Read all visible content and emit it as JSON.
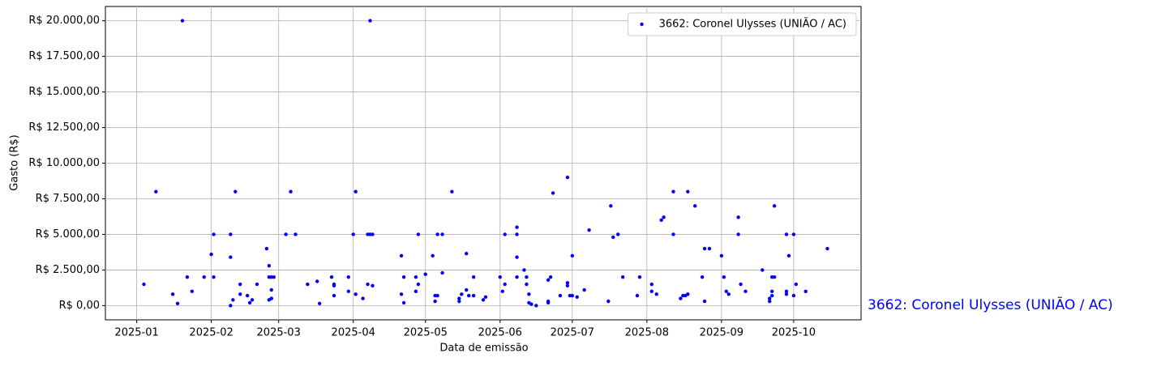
{
  "chart_data": {
    "type": "scatter",
    "xlabel": "Data de emissão",
    "ylabel": "Gasto (R$)",
    "annotation": "3662: Coronel Ulysses (UNIÃO / AC)",
    "grid": true,
    "legend": "upper right",
    "xlim": [
      "2024-12-19",
      "2025-10-29"
    ],
    "xticks": [
      {
        "value": "2025-01-01",
        "label": "2025-01"
      },
      {
        "value": "2025-02-01",
        "label": "2025-02"
      },
      {
        "value": "2025-03-01",
        "label": "2025-03"
      },
      {
        "value": "2025-04-01",
        "label": "2025-04"
      },
      {
        "value": "2025-05-01",
        "label": "2025-05"
      },
      {
        "value": "2025-06-01",
        "label": "2025-06"
      },
      {
        "value": "2025-07-01",
        "label": "2025-07"
      },
      {
        "value": "2025-08-01",
        "label": "2025-08"
      },
      {
        "value": "2025-09-01",
        "label": "2025-09"
      },
      {
        "value": "2025-10-01",
        "label": "2025-10"
      }
    ],
    "ylim": [
      -1000,
      21000
    ],
    "yticks": [
      {
        "value": 0,
        "label": "R$ 0,00"
      },
      {
        "value": 2500,
        "label": "R$ 2.500,00"
      },
      {
        "value": 5000,
        "label": "R$ 5.000,00"
      },
      {
        "value": 7500,
        "label": "R$ 7.500,00"
      },
      {
        "value": 10000,
        "label": "R$ 10.000,00"
      },
      {
        "value": 12500,
        "label": "R$ 12.500,00"
      },
      {
        "value": 15000,
        "label": "R$ 15.000,00"
      },
      {
        "value": 17500,
        "label": "R$ 17.500,00"
      },
      {
        "value": 20000,
        "label": "R$ 20.000,00"
      }
    ],
    "series": [
      {
        "name": "3662: Coronel Ulysses (UNIÃO / AC)",
        "color": "#0000ff",
        "x": [
          "2025-01-04",
          "2025-01-09",
          "2025-01-16",
          "2025-01-18",
          "2025-01-20",
          "2025-01-22",
          "2025-01-24",
          "2025-01-29",
          "2025-02-01",
          "2025-02-02",
          "2025-02-02",
          "2025-02-09",
          "2025-02-09",
          "2025-02-09",
          "2025-02-10",
          "2025-02-11",
          "2025-02-13",
          "2025-02-13",
          "2025-02-16",
          "2025-02-17",
          "2025-02-18",
          "2025-02-20",
          "2025-02-24",
          "2025-02-25",
          "2025-02-25",
          "2025-02-26",
          "2025-02-26",
          "2025-02-26",
          "2025-02-27",
          "2025-02-25",
          "2025-03-04",
          "2025-03-06",
          "2025-03-08",
          "2025-03-13",
          "2025-03-17",
          "2025-03-18",
          "2025-03-23",
          "2025-03-24",
          "2025-03-24",
          "2025-03-24",
          "2025-03-30",
          "2025-03-30",
          "2025-04-01",
          "2025-04-02",
          "2025-04-02",
          "2025-04-05",
          "2025-04-07",
          "2025-04-07",
          "2025-04-08",
          "2025-04-08",
          "2025-04-09",
          "2025-04-09",
          "2025-04-21",
          "2025-04-21",
          "2025-04-22",
          "2025-04-22",
          "2025-04-27",
          "2025-04-27",
          "2025-04-28",
          "2025-04-28",
          "2025-05-01",
          "2025-05-04",
          "2025-05-05",
          "2025-05-05",
          "2025-05-06",
          "2025-05-06",
          "2025-05-08",
          "2025-05-08",
          "2025-05-12",
          "2025-05-15",
          "2025-05-15",
          "2025-05-16",
          "2025-05-18",
          "2025-05-18",
          "2025-05-19",
          "2025-05-21",
          "2025-05-21",
          "2025-05-25",
          "2025-05-26",
          "2025-06-01",
          "2025-06-02",
          "2025-06-03",
          "2025-06-03",
          "2025-06-08",
          "2025-06-08",
          "2025-06-08",
          "2025-06-08",
          "2025-06-11",
          "2025-06-12",
          "2025-06-12",
          "2025-06-13",
          "2025-06-13",
          "2025-06-14",
          "2025-06-16",
          "2025-06-21",
          "2025-06-21",
          "2025-06-21",
          "2025-06-22",
          "2025-06-23",
          "2025-06-26",
          "2025-06-29",
          "2025-06-29",
          "2025-06-29",
          "2025-06-30",
          "2025-07-01",
          "2025-07-01",
          "2025-07-03",
          "2025-07-06",
          "2025-07-08",
          "2025-07-16",
          "2025-07-17",
          "2025-07-18",
          "2025-07-20",
          "2025-07-22",
          "2025-07-28",
          "2025-07-29",
          "2025-08-03",
          "2025-08-03",
          "2025-08-05",
          "2025-08-07",
          "2025-08-08",
          "2025-08-12",
          "2025-08-12",
          "2025-08-15",
          "2025-08-16",
          "2025-08-17",
          "2025-08-18",
          "2025-08-18",
          "2025-08-21",
          "2025-08-24",
          "2025-08-25",
          "2025-08-25",
          "2025-08-27",
          "2025-09-01",
          "2025-09-02",
          "2025-09-03",
          "2025-09-04",
          "2025-09-08",
          "2025-09-08",
          "2025-09-09",
          "2025-09-11",
          "2025-09-18",
          "2025-09-21",
          "2025-09-21",
          "2025-09-22",
          "2025-09-22",
          "2025-09-22",
          "2025-09-23",
          "2025-09-23",
          "2025-09-28",
          "2025-09-28",
          "2025-09-28",
          "2025-09-29",
          "2025-10-01",
          "2025-10-01",
          "2025-10-02",
          "2025-10-06",
          "2025-10-15"
        ],
        "values": [
          1500,
          8000,
          800,
          150,
          20000,
          2000,
          1000,
          2000,
          3600,
          5000,
          2000,
          5000,
          3400,
          0,
          400,
          8000,
          1500,
          800,
          700,
          200,
          400,
          1500,
          4000,
          2800,
          2000,
          1100,
          500,
          2000,
          2000,
          400,
          5000,
          8000,
          5000,
          1500,
          1700,
          150,
          2000,
          1500,
          1400,
          700,
          2000,
          1000,
          5000,
          8000,
          800,
          500,
          1500,
          5000,
          5000,
          20000,
          5000,
          1400,
          3500,
          800,
          2000,
          200,
          2000,
          1000,
          1500,
          5000,
          2200,
          3500,
          700,
          300,
          5000,
          700,
          5000,
          2300,
          8000,
          300,
          500,
          800,
          3650,
          1100,
          700,
          2000,
          700,
          400,
          600,
          2000,
          1000,
          1500,
          5000,
          5000,
          5500,
          2000,
          3400,
          2500,
          2000,
          1500,
          800,
          200,
          100,
          0,
          200,
          300,
          1800,
          2000,
          7900,
          700,
          9000,
          1400,
          1600,
          700,
          3500,
          700,
          600,
          1100,
          5300,
          300,
          7000,
          4800,
          5000,
          2000,
          700,
          2000,
          1500,
          1000,
          800,
          6000,
          6200,
          5000,
          8000,
          500,
          700,
          700,
          800,
          8000,
          7000,
          2000,
          300,
          4000,
          4000,
          3500,
          2000,
          1000,
          800,
          6200,
          5000,
          1500,
          1000,
          2500,
          300,
          500,
          700,
          1000,
          2000,
          7000,
          2000,
          1000,
          800,
          5000,
          3500,
          5000,
          700,
          1500,
          1000,
          4000
        ]
      }
    ]
  }
}
